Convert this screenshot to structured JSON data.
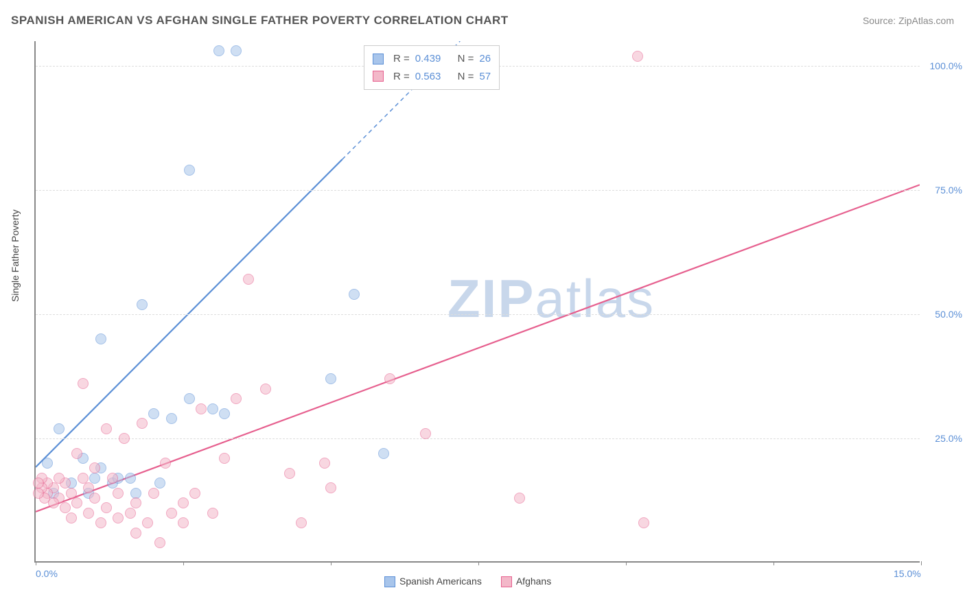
{
  "title": "SPANISH AMERICAN VS AFGHAN SINGLE FATHER POVERTY CORRELATION CHART",
  "source": "Source: ZipAtlas.com",
  "y_axis_title": "Single Father Poverty",
  "watermark": "ZIPatlas",
  "chart": {
    "type": "scatter",
    "xlim": [
      0,
      15
    ],
    "ylim": [
      0,
      105
    ],
    "x_ticks": [
      0,
      2.5,
      5,
      7.5,
      10,
      12.5,
      15
    ],
    "y_gridlines": [
      25,
      50,
      75,
      100
    ],
    "y_labels": [
      "25.0%",
      "50.0%",
      "75.0%",
      "100.0%"
    ],
    "x_labels": {
      "0": "0.0%",
      "15": "15.0%"
    },
    "background_color": "#ffffff",
    "grid_color": "#dddddd",
    "axis_color": "#888888",
    "label_color": "#5b8fd6",
    "point_radius": 8,
    "point_opacity": 0.55,
    "line_width": 2.2
  },
  "series": [
    {
      "name": "Spanish Americans",
      "color_fill": "#a8c5eb",
      "color_stroke": "#5b8fd6",
      "r": "0.439",
      "n": "26",
      "regression": {
        "x1": 0,
        "y1": 19,
        "x2": 7.2,
        "y2": 105,
        "solid_to_x": 5.2
      },
      "points": [
        [
          3.1,
          103
        ],
        [
          3.4,
          103
        ],
        [
          2.6,
          79
        ],
        [
          1.1,
          45
        ],
        [
          1.8,
          52
        ],
        [
          5.4,
          54
        ],
        [
          0.4,
          27
        ],
        [
          0.2,
          20
        ],
        [
          0.6,
          16
        ],
        [
          0.8,
          21
        ],
        [
          1.0,
          17
        ],
        [
          1.1,
          19
        ],
        [
          1.3,
          16
        ],
        [
          1.4,
          17
        ],
        [
          1.6,
          17
        ],
        [
          2.0,
          30
        ],
        [
          2.3,
          29
        ],
        [
          2.6,
          33
        ],
        [
          3.0,
          31
        ],
        [
          3.2,
          30
        ],
        [
          5.0,
          37
        ],
        [
          5.9,
          22
        ],
        [
          0.3,
          14
        ],
        [
          0.9,
          14
        ],
        [
          1.7,
          14
        ],
        [
          2.1,
          16
        ]
      ]
    },
    {
      "name": "Afghans",
      "color_fill": "#f3b8c9",
      "color_stroke": "#e65f8e",
      "r": "0.563",
      "n": "57",
      "regression": {
        "x1": 0,
        "y1": 10,
        "x2": 15,
        "y2": 76,
        "solid_to_x": 15
      },
      "points": [
        [
          10.2,
          102
        ],
        [
          10.3,
          8
        ],
        [
          8.2,
          13
        ],
        [
          6.6,
          26
        ],
        [
          6.0,
          37
        ],
        [
          5.0,
          15
        ],
        [
          4.9,
          20
        ],
        [
          4.5,
          8
        ],
        [
          4.3,
          18
        ],
        [
          3.9,
          35
        ],
        [
          3.6,
          57
        ],
        [
          3.4,
          33
        ],
        [
          3.2,
          21
        ],
        [
          3.0,
          10
        ],
        [
          2.8,
          31
        ],
        [
          2.7,
          14
        ],
        [
          2.5,
          8
        ],
        [
          2.5,
          12
        ],
        [
          2.3,
          10
        ],
        [
          2.2,
          20
        ],
        [
          2.1,
          4
        ],
        [
          2.0,
          14
        ],
        [
          1.9,
          8
        ],
        [
          1.8,
          28
        ],
        [
          1.7,
          12
        ],
        [
          1.7,
          6
        ],
        [
          1.6,
          10
        ],
        [
          1.5,
          25
        ],
        [
          1.4,
          14
        ],
        [
          1.4,
          9
        ],
        [
          1.3,
          17
        ],
        [
          1.2,
          11
        ],
        [
          1.2,
          27
        ],
        [
          1.1,
          8
        ],
        [
          1.0,
          13
        ],
        [
          1.0,
          19
        ],
        [
          0.9,
          15
        ],
        [
          0.9,
          10
        ],
        [
          0.8,
          17
        ],
        [
          0.8,
          36
        ],
        [
          0.7,
          12
        ],
        [
          0.7,
          22
        ],
        [
          0.6,
          14
        ],
        [
          0.6,
          9
        ],
        [
          0.5,
          16
        ],
        [
          0.5,
          11
        ],
        [
          0.4,
          13
        ],
        [
          0.4,
          17
        ],
        [
          0.3,
          15
        ],
        [
          0.3,
          12
        ],
        [
          0.2,
          14
        ],
        [
          0.2,
          16
        ],
        [
          0.15,
          13
        ],
        [
          0.1,
          15
        ],
        [
          0.1,
          17
        ],
        [
          0.05,
          14
        ],
        [
          0.05,
          16
        ]
      ]
    }
  ],
  "legend_bottom": [
    {
      "label": "Spanish Americans",
      "fill": "#a8c5eb",
      "stroke": "#5b8fd6"
    },
    {
      "label": "Afghans",
      "fill": "#f3b8c9",
      "stroke": "#e65f8e"
    }
  ]
}
